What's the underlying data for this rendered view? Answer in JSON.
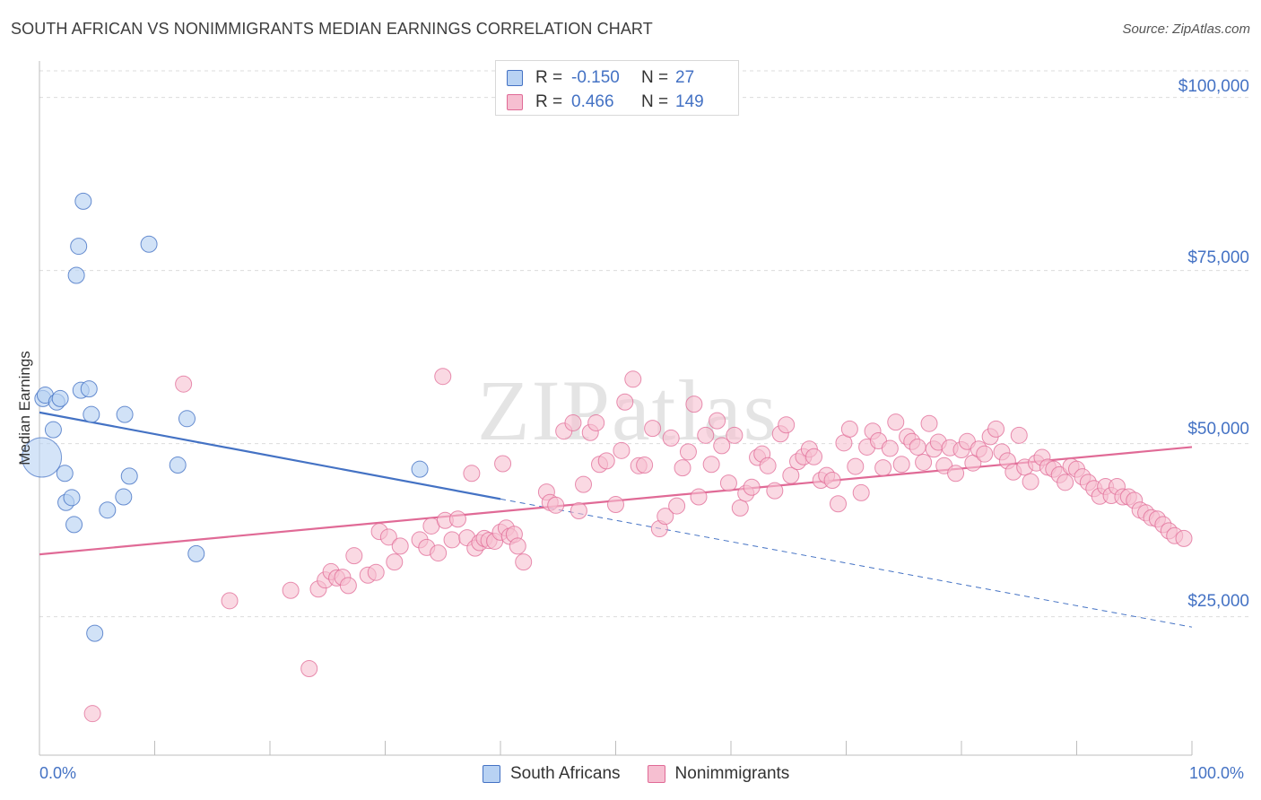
{
  "title": "SOUTH AFRICAN VS NONIMMIGRANTS MEDIAN EARNINGS CORRELATION CHART",
  "source": "Source: ZipAtlas.com",
  "watermark": "ZIPatlas",
  "chart_data": {
    "type": "scatter",
    "ylabel": "Median Earnings",
    "xlim": [
      0,
      100
    ],
    "ylim": [
      5000,
      105000
    ],
    "x_tick_labels": {
      "min": "0.0%",
      "max": "100.0%"
    },
    "y_ticks": [
      {
        "value": 25000,
        "label": "$25,000"
      },
      {
        "value": 50000,
        "label": "$50,000"
      },
      {
        "value": 75000,
        "label": "$75,000"
      },
      {
        "value": 100000,
        "label": "$100,000"
      }
    ],
    "grid": true,
    "legend": [
      {
        "series": "South Africans",
        "r_label": "R =",
        "r": "-0.150",
        "n_label": "N =",
        "n": "27",
        "color": "#4472c4",
        "fill": "#b8d2f3"
      },
      {
        "series": "Nonimmigrants",
        "r_label": "R =",
        "r": "0.466",
        "n_label": "N =",
        "n": "149",
        "color": "#e06a96",
        "fill": "#f6bfd1"
      }
    ],
    "series": [
      {
        "name": "South Africans",
        "color": "#4472c4",
        "fill": "#b8d2f3",
        "trend": {
          "x0": 0,
          "y0": 54500,
          "x1": 40,
          "y1": 42000,
          "dash_to_x": 100,
          "dash_to_y": 23500
        },
        "points": [
          [
            0.3,
            56500
          ],
          [
            0.5,
            57000
          ],
          [
            1.5,
            56000
          ],
          [
            1.8,
            56500
          ],
          [
            1.2,
            52000
          ],
          [
            2.2,
            45700
          ],
          [
            2.3,
            41500
          ],
          [
            2.8,
            42200
          ],
          [
            3.0,
            38300
          ],
          [
            3.2,
            74300
          ],
          [
            3.4,
            78500
          ],
          [
            3.8,
            85000
          ],
          [
            3.6,
            57700
          ],
          [
            4.3,
            57900
          ],
          [
            4.5,
            54200
          ],
          [
            5.9,
            40400
          ],
          [
            7.3,
            42300
          ],
          [
            7.4,
            54200
          ],
          [
            7.8,
            45300
          ],
          [
            9.5,
            78800
          ],
          [
            12.0,
            46900
          ],
          [
            12.8,
            53600
          ],
          [
            13.6,
            34100
          ],
          [
            4.8,
            22600
          ],
          [
            33.0,
            46300
          ]
        ],
        "big_point": [
          0.2,
          48000
        ]
      },
      {
        "name": "Nonimmigrants",
        "color": "#e06a96",
        "fill": "#f6bfd1",
        "trend": {
          "x0": 0,
          "y0": 34000,
          "x1": 100,
          "y1": 49500
        },
        "points": [
          [
            4.6,
            11000
          ],
          [
            12.5,
            58600
          ],
          [
            16.5,
            27300
          ],
          [
            21.8,
            28800
          ],
          [
            23.4,
            17500
          ],
          [
            24.2,
            29000
          ],
          [
            24.8,
            30300
          ],
          [
            25.3,
            31500
          ],
          [
            25.8,
            30600
          ],
          [
            26.3,
            30700
          ],
          [
            26.8,
            29500
          ],
          [
            27.3,
            33800
          ],
          [
            28.5,
            31000
          ],
          [
            29.2,
            31400
          ],
          [
            29.5,
            37300
          ],
          [
            30.3,
            36500
          ],
          [
            30.8,
            32900
          ],
          [
            31.3,
            35200
          ],
          [
            33.0,
            36100
          ],
          [
            33.6,
            35000
          ],
          [
            34.0,
            38100
          ],
          [
            34.6,
            34200
          ],
          [
            35.2,
            38900
          ],
          [
            35.8,
            36100
          ],
          [
            36.3,
            39100
          ],
          [
            37.1,
            36400
          ],
          [
            37.8,
            34900
          ],
          [
            38.2,
            35700
          ],
          [
            38.6,
            36300
          ],
          [
            39.0,
            36000
          ],
          [
            39.5,
            35900
          ],
          [
            40.0,
            37200
          ],
          [
            40.5,
            37800
          ],
          [
            40.8,
            36600
          ],
          [
            41.2,
            36900
          ],
          [
            41.5,
            35200
          ],
          [
            42.0,
            32900
          ],
          [
            35.0,
            59700
          ],
          [
            37.5,
            45700
          ],
          [
            40.2,
            47100
          ],
          [
            44.0,
            43000
          ],
          [
            44.3,
            41500
          ],
          [
            44.8,
            41100
          ],
          [
            45.5,
            51800
          ],
          [
            46.3,
            53000
          ],
          [
            46.8,
            40300
          ],
          [
            47.2,
            44100
          ],
          [
            47.8,
            51600
          ],
          [
            48.3,
            53000
          ],
          [
            48.6,
            47000
          ],
          [
            49.2,
            47500
          ],
          [
            50.0,
            41200
          ],
          [
            50.5,
            49000
          ],
          [
            50.8,
            56000
          ],
          [
            51.5,
            59300
          ],
          [
            52.0,
            46800
          ],
          [
            52.5,
            46900
          ],
          [
            53.2,
            52200
          ],
          [
            53.8,
            37700
          ],
          [
            54.3,
            39500
          ],
          [
            54.8,
            50800
          ],
          [
            55.3,
            41000
          ],
          [
            55.8,
            46500
          ],
          [
            56.3,
            48800
          ],
          [
            56.8,
            55700
          ],
          [
            57.2,
            42300
          ],
          [
            57.8,
            51200
          ],
          [
            58.3,
            47000
          ],
          [
            58.8,
            53300
          ],
          [
            59.2,
            49700
          ],
          [
            59.8,
            44300
          ],
          [
            60.3,
            51200
          ],
          [
            60.8,
            40700
          ],
          [
            61.3,
            42800
          ],
          [
            61.8,
            43700
          ],
          [
            62.3,
            48000
          ],
          [
            62.7,
            48500
          ],
          [
            63.2,
            46800
          ],
          [
            63.8,
            43200
          ],
          [
            64.3,
            51400
          ],
          [
            64.8,
            52700
          ],
          [
            65.2,
            45400
          ],
          [
            65.8,
            47400
          ],
          [
            66.3,
            48100
          ],
          [
            66.8,
            49200
          ],
          [
            67.2,
            48100
          ],
          [
            67.8,
            44700
          ],
          [
            68.3,
            45400
          ],
          [
            68.8,
            44700
          ],
          [
            69.3,
            41300
          ],
          [
            69.8,
            50100
          ],
          [
            70.3,
            52100
          ],
          [
            70.8,
            46700
          ],
          [
            71.3,
            42900
          ],
          [
            71.8,
            49500
          ],
          [
            72.3,
            51800
          ],
          [
            72.8,
            50400
          ],
          [
            73.2,
            46500
          ],
          [
            73.8,
            49300
          ],
          [
            74.3,
            53100
          ],
          [
            74.8,
            47000
          ],
          [
            75.3,
            51000
          ],
          [
            75.7,
            50300
          ],
          [
            76.2,
            49500
          ],
          [
            76.7,
            47300
          ],
          [
            77.2,
            52900
          ],
          [
            77.6,
            49200
          ],
          [
            78.0,
            50200
          ],
          [
            78.5,
            46800
          ],
          [
            79.0,
            49400
          ],
          [
            79.5,
            45700
          ],
          [
            80.0,
            49100
          ],
          [
            80.5,
            50300
          ],
          [
            81.0,
            47200
          ],
          [
            81.5,
            49200
          ],
          [
            82.0,
            48500
          ],
          [
            82.5,
            51000
          ],
          [
            83.0,
            52100
          ],
          [
            83.5,
            48800
          ],
          [
            84.0,
            47500
          ],
          [
            84.5,
            45900
          ],
          [
            85.0,
            51200
          ],
          [
            85.5,
            46600
          ],
          [
            86.0,
            44500
          ],
          [
            86.5,
            47200
          ],
          [
            87.0,
            48000
          ],
          [
            87.5,
            46600
          ],
          [
            88.0,
            46300
          ],
          [
            88.5,
            45500
          ],
          [
            89.0,
            44400
          ],
          [
            89.5,
            46700
          ],
          [
            90.0,
            46300
          ],
          [
            90.5,
            45200
          ],
          [
            91.0,
            44400
          ],
          [
            91.5,
            43500
          ],
          [
            92.0,
            42400
          ],
          [
            92.5,
            43800
          ],
          [
            93.0,
            42500
          ],
          [
            93.5,
            43800
          ],
          [
            94.0,
            42300
          ],
          [
            94.5,
            42300
          ],
          [
            95.0,
            41800
          ],
          [
            95.5,
            40400
          ],
          [
            96.0,
            40000
          ],
          [
            96.5,
            39300
          ],
          [
            97.0,
            39100
          ],
          [
            97.5,
            38300
          ],
          [
            98.0,
            37400
          ],
          [
            98.5,
            36700
          ],
          [
            99.3,
            36300
          ]
        ]
      }
    ]
  }
}
